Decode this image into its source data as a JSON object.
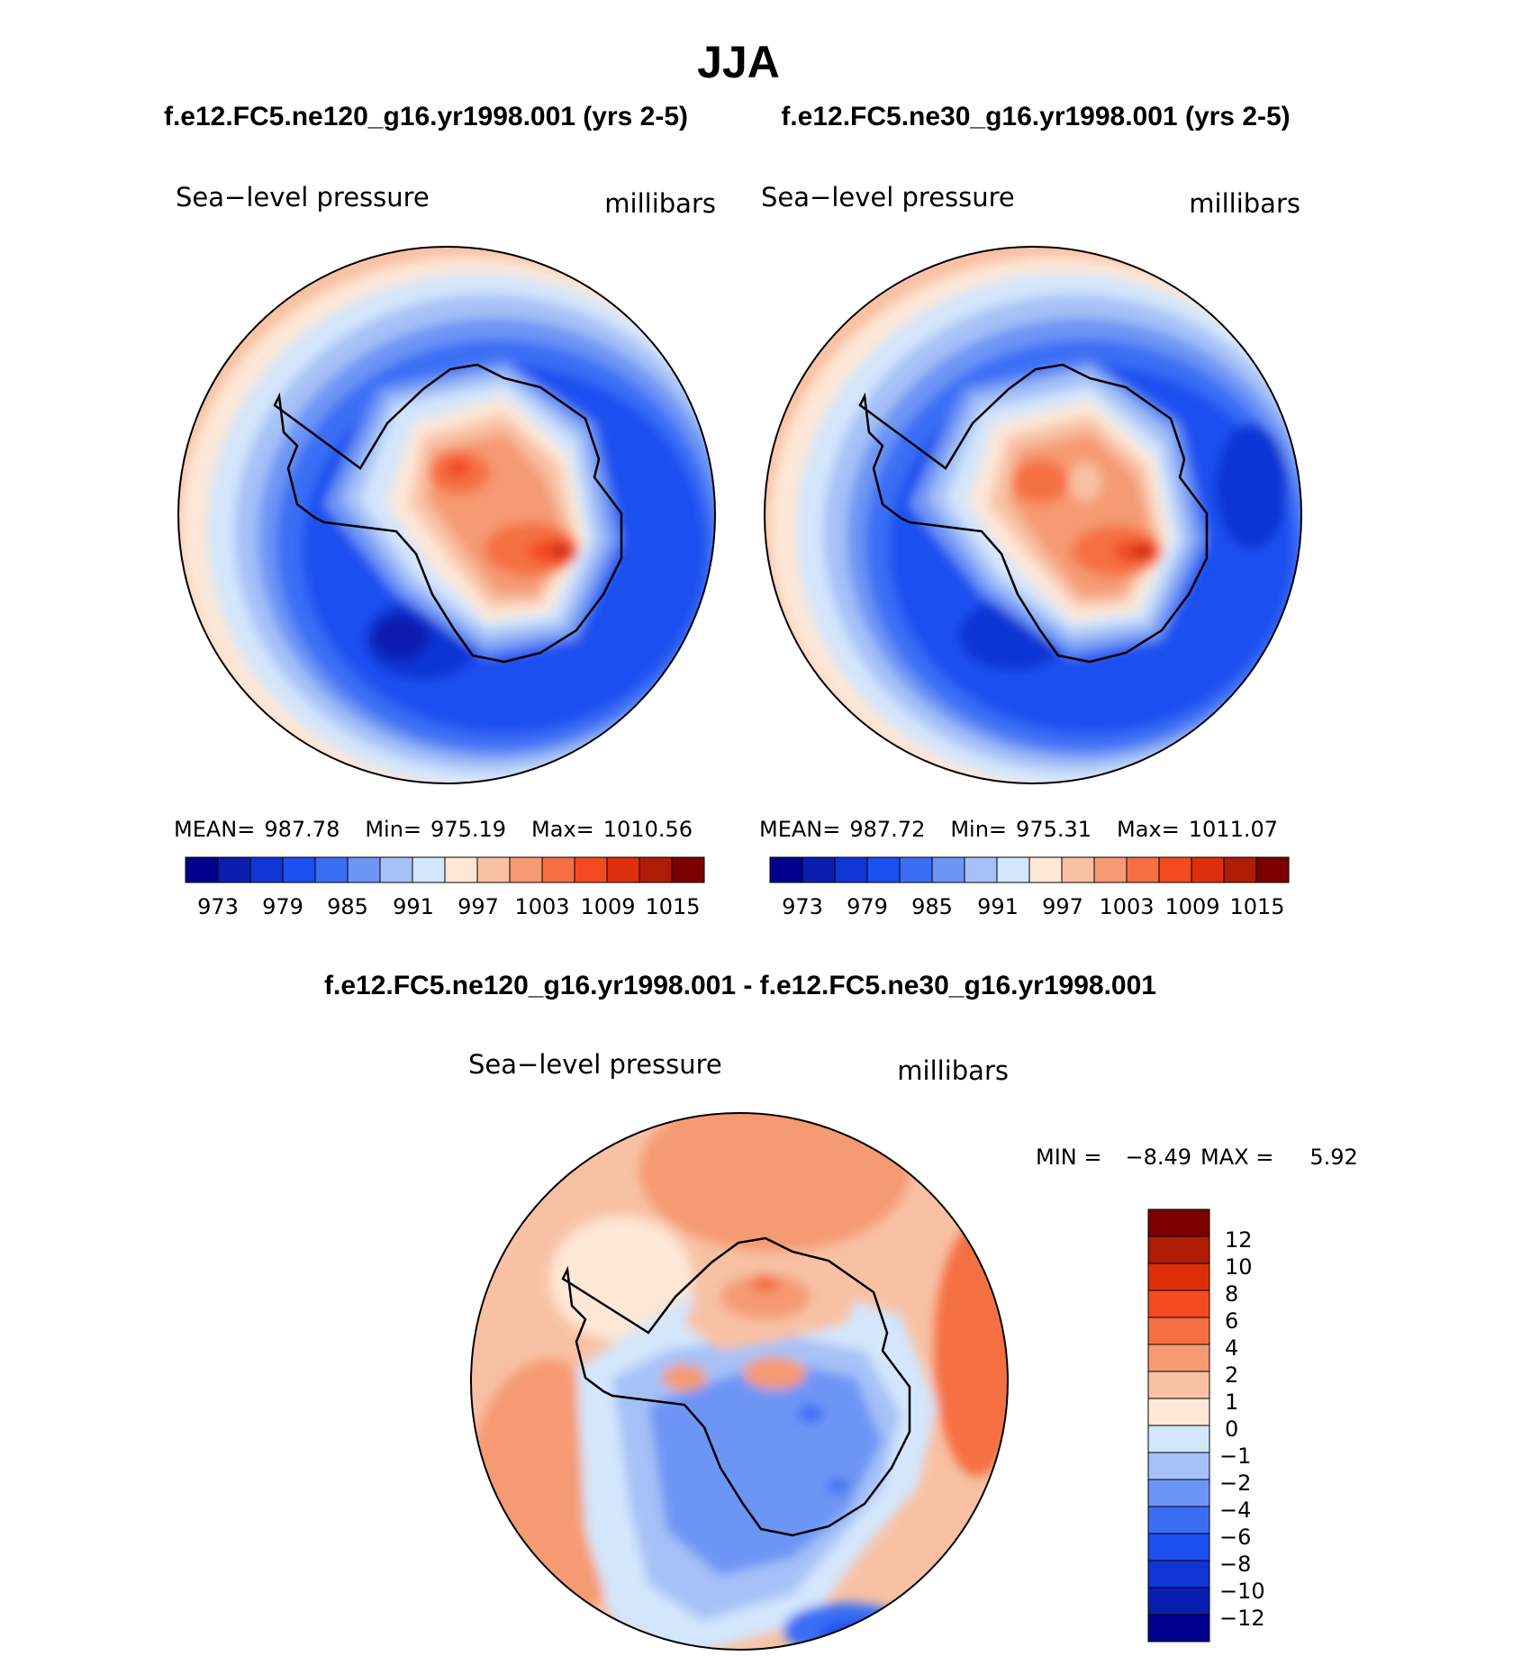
{
  "colors": {
    "abs": [
      "#00008c",
      "#0a1fb0",
      "#0f35d4",
      "#1c4ff0",
      "#3b6ef5",
      "#6d95f5",
      "#a6c1f7",
      "#d4e6fb",
      "#fde7d6",
      "#f8c1a4",
      "#f59a72",
      "#f56f43",
      "#f34a22",
      "#de2f0c",
      "#b01b06",
      "#7a0000"
    ],
    "diff": [
      "#00008c",
      "#0a1fb0",
      "#0f35d4",
      "#1c4ff0",
      "#3b6ef5",
      "#6d95f5",
      "#a6c1f7",
      "#d4e6fb",
      "#fde7d6",
      "#f8c1a4",
      "#f59a72",
      "#f56f43",
      "#f34a22",
      "#de2f0c",
      "#b01b06",
      "#7a0000"
    ]
  },
  "chart_data": {
    "type": "polar-contour",
    "title": "JJA",
    "top_panels": [
      {
        "run": "f.e12.FC5.ne120_g16.yr1998.001 (yrs 2-5)",
        "variable": "Sea−level pressure",
        "units": "millibars",
        "stats": {
          "mean_label": "MEAN=",
          "mean": "987.78",
          "min_label": "Min=",
          "min": "975.19",
          "max_label": "Max=",
          "max": "1010.56"
        },
        "colorbar_ticks": [
          "973",
          "979",
          "985",
          "991",
          "997",
          "1003",
          "1009",
          "1015"
        ]
      },
      {
        "run": "f.e12.FC5.ne30_g16.yr1998.001 (yrs 2-5)",
        "variable": "Sea−level pressure",
        "units": "millibars",
        "stats": {
          "mean_label": "MEAN=",
          "mean": "987.72",
          "min_label": "Min=",
          "min": "975.31",
          "max_label": "Max=",
          "max": "1011.07"
        },
        "colorbar_ticks": [
          "973",
          "979",
          "985",
          "991",
          "997",
          "1003",
          "1009",
          "1015"
        ]
      }
    ],
    "diff_panel": {
      "title": "f.e12.FC5.ne120_g16.yr1998.001 - f.e12.FC5.ne30_g16.yr1998.001",
      "variable": "Sea−level pressure",
      "units": "millibars",
      "min_label": "MIN =",
      "min": "−8.49",
      "max_label": "MAX =",
      "max": "5.92",
      "colorbar_levels": [
        "12",
        "10",
        "8",
        "6",
        "4",
        "2",
        "1",
        "0",
        "−1",
        "−2",
        "−4",
        "−6",
        "−8",
        "−10",
        "−12"
      ]
    }
  }
}
